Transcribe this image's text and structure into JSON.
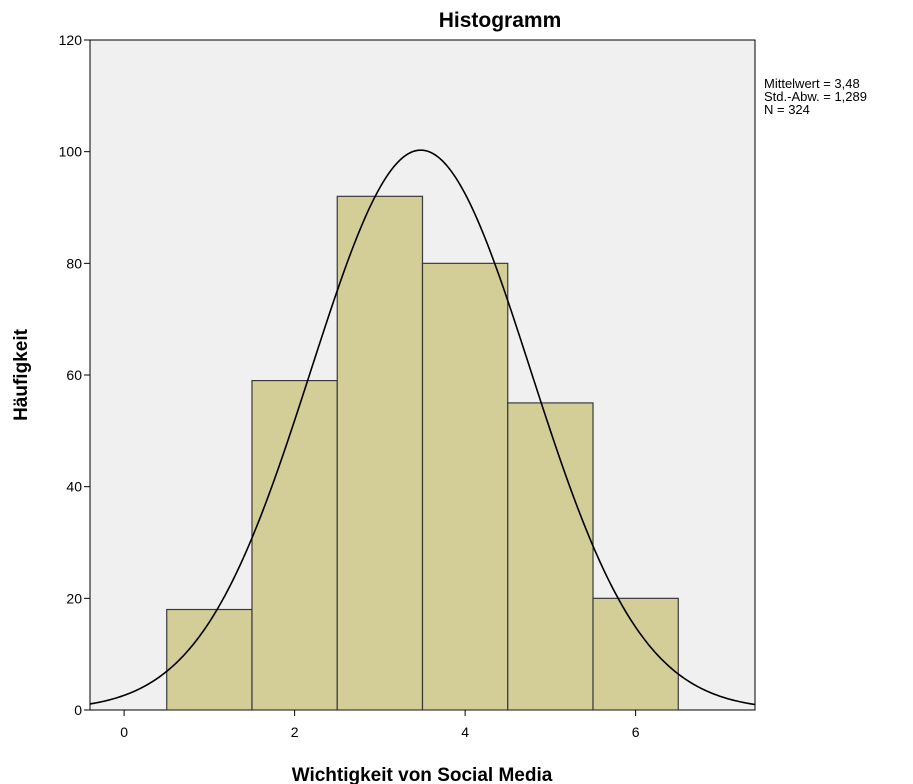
{
  "chart_data": {
    "type": "bar",
    "title": "Histogramm",
    "xlabel": "Wichtigkeit von Social Media",
    "ylabel": "Häufigkeit",
    "bins": [
      {
        "from": 0.5,
        "to": 1.5,
        "count": 18
      },
      {
        "from": 1.5,
        "to": 2.5,
        "count": 59
      },
      {
        "from": 2.5,
        "to": 3.5,
        "count": 92
      },
      {
        "from": 3.5,
        "to": 4.5,
        "count": 80
      },
      {
        "from": 4.5,
        "to": 5.5,
        "count": 55
      },
      {
        "from": 5.5,
        "to": 6.5,
        "count": 20
      }
    ],
    "xlim": [
      -0.4,
      7.4
    ],
    "ylim": [
      0,
      120
    ],
    "x_ticks": [
      "0",
      "2",
      "4",
      "6"
    ],
    "y_ticks": [
      "0",
      "20",
      "40",
      "60",
      "80",
      "100",
      "120"
    ],
    "normal_curve": {
      "mean": 3.48,
      "sd": 1.289,
      "n": 324,
      "bin_width": 1
    },
    "stats_lines": [
      "Mittelwert = 3,48",
      "Std.-Abw. = 1,289",
      "N = 324"
    ],
    "grid": false,
    "colors": {
      "plot_background": "#f0f0f0",
      "bar_fill": "#d3ce97",
      "bar_stroke": "#3a3a3a",
      "curve": "#000000"
    }
  }
}
